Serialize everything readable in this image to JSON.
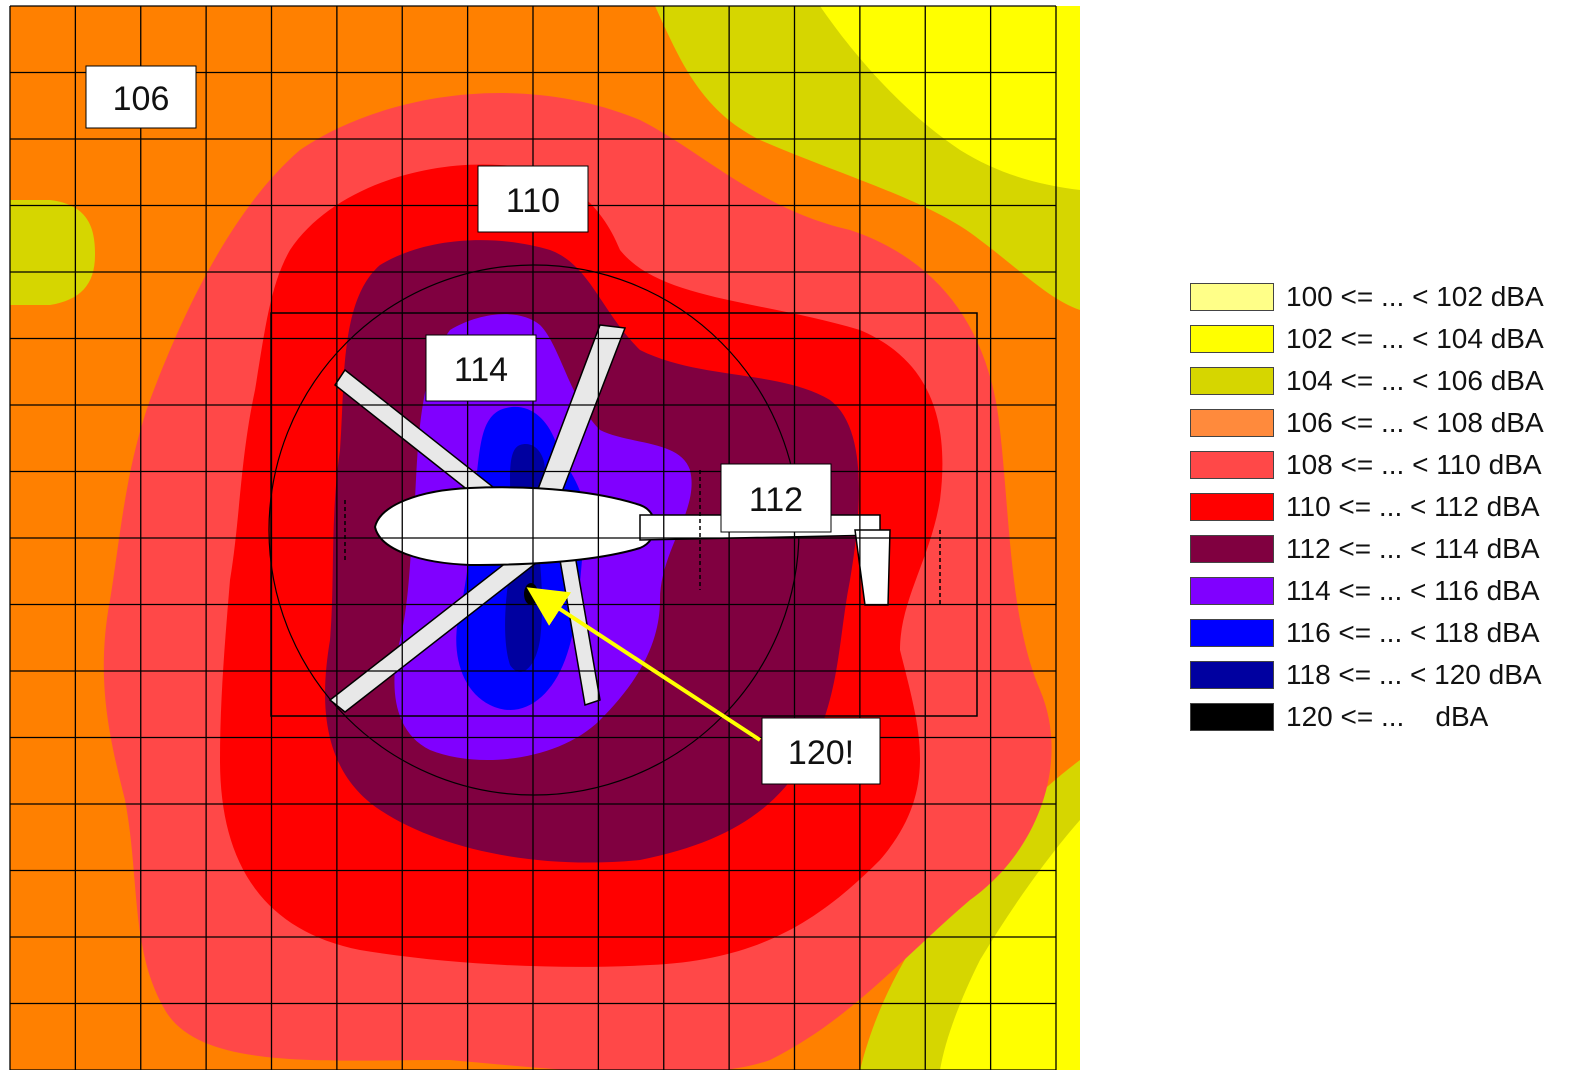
{
  "chart_data": {
    "type": "heatmap",
    "title": "",
    "xlabel": "",
    "ylabel": "",
    "grid": true,
    "legend_position": "right",
    "zone_labels": [
      "106",
      "110",
      "114",
      "112",
      "120!"
    ],
    "legend": [
      {
        "label": "100 <= ... < 102 dBA",
        "color": "#ffff88"
      },
      {
        "label": "102 <= ... < 104 dBA",
        "color": "#ffff00"
      },
      {
        "label": "104 <= ... < 106 dBA",
        "color": "#d6d600"
      },
      {
        "label": "106 <= ... < 108 dBA",
        "color": "#ff8a3c"
      },
      {
        "label": "108 <= ... < 110 dBA",
        "color": "#ff4848"
      },
      {
        "label": "110 <= ... < 112 dBA",
        "color": "#ff0000"
      },
      {
        "label": "112 <= ... < 114 dBA",
        "color": "#800040"
      },
      {
        "label": "114 <= ... < 116 dBA",
        "color": "#8000ff"
      },
      {
        "label": "116 <= ... < 118 dBA",
        "color": "#0000ff"
      },
      {
        "label": "118 <= ... < 120 dBA",
        "color": "#0000a0"
      },
      {
        "label": "120 <= ...    dBA",
        "color": "#000000"
      }
    ]
  },
  "colors": {
    "background_orange": "#ff8000",
    "arrow": "#ffff00",
    "grid_line": "#000000"
  }
}
